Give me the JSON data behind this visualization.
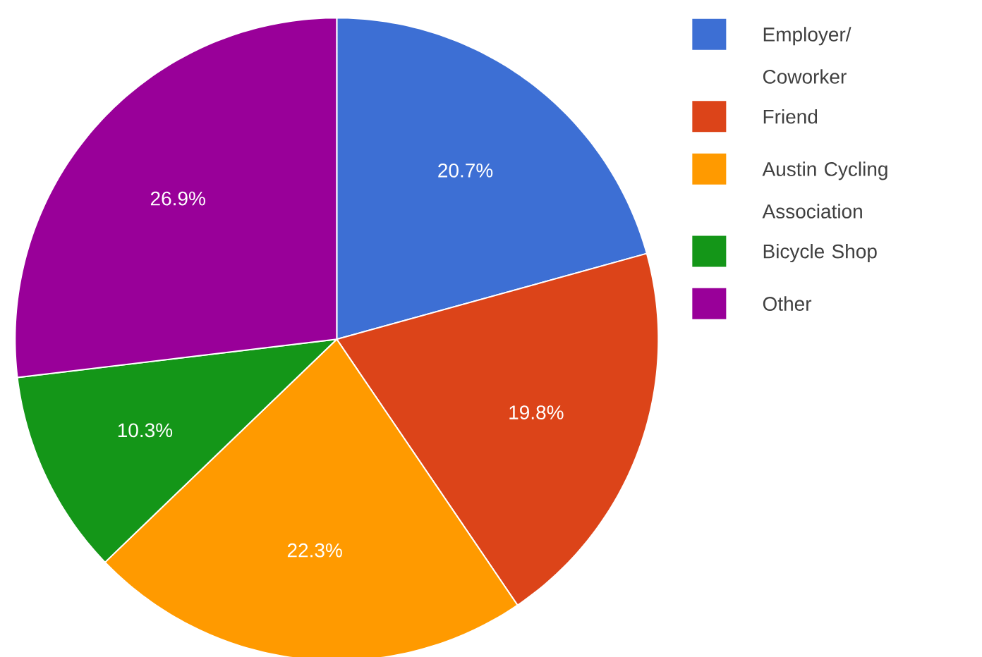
{
  "chart_data": {
    "type": "pie",
    "categories": [
      "Employer/ Coworker",
      "Friend",
      "Austin Cycling Association",
      "Bicycle Shop",
      "Other"
    ],
    "values": [
      20.7,
      19.8,
      22.3,
      10.3,
      26.9
    ],
    "colors": [
      "#3d6fd4",
      "#dc4419",
      "#ff9a00",
      "#149618",
      "#990099"
    ],
    "value_labels": [
      "20.7%",
      "19.8%",
      "22.3%",
      "10.3%",
      "26.9%"
    ],
    "legend": "right"
  }
}
